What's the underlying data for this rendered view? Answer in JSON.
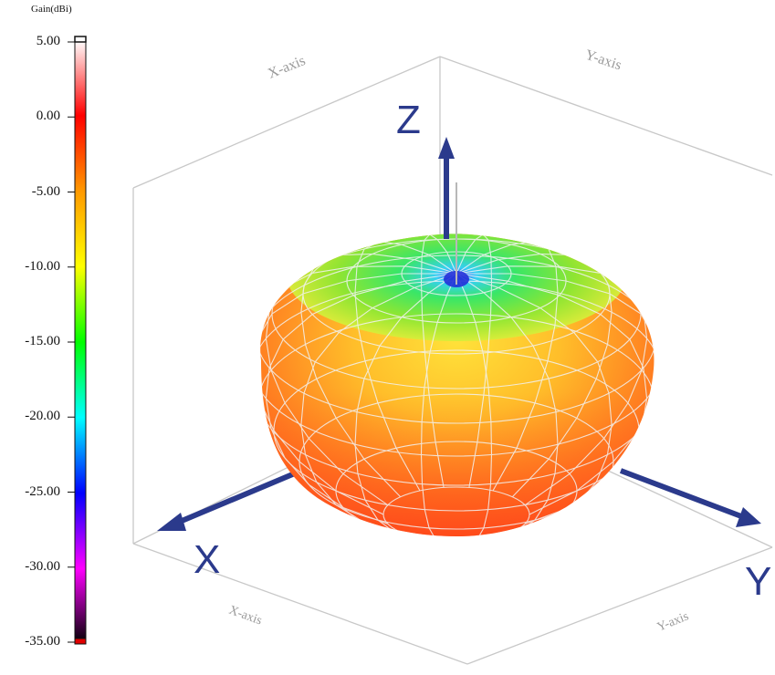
{
  "colorbar": {
    "title": "Gain(dBi)",
    "ticks": [
      "5.00",
      "0.00",
      "-5.00",
      "-10.00",
      "-15.00",
      "-20.00",
      "-25.00",
      "-30.00",
      "-35.00"
    ],
    "stops": [
      "#ffffff",
      "#ff0000",
      "#ff9900",
      "#ffff00",
      "#00ff00",
      "#00ffff",
      "#0000ff",
      "#ff00ff",
      "#000000"
    ]
  },
  "axes": {
    "x": "X",
    "y": "Y",
    "z": "Z",
    "x_box_top": "X-axis",
    "y_box_top": "Y-axis",
    "x_box_bottom": "X-axis",
    "y_box_bottom": "Y-axis"
  },
  "colors": {
    "arrow": "#2b3a8c",
    "box": "#c8c8c8",
    "pattern_top": "#1ee84a",
    "pattern_mid": "#ffb21e",
    "pattern_bottom": "#ff4a1e"
  }
}
